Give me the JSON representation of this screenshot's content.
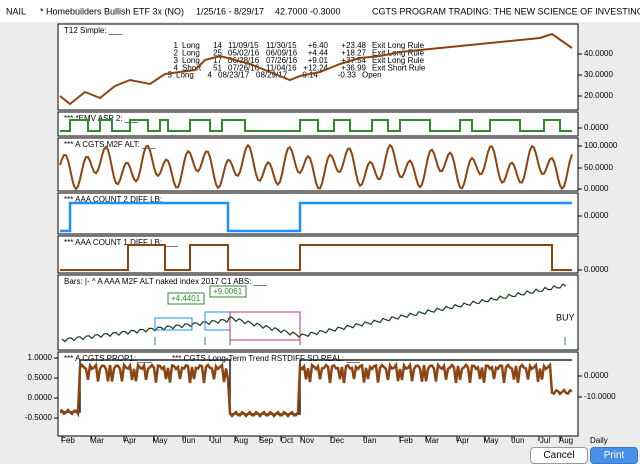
{
  "header": {
    "symbol": "NAIL",
    "name": "* Homebuilders Bullish ETF 3x (NO)",
    "range": "1/25/16 - 8/29/17",
    "price": "42.7000",
    "change": "-0.3000",
    "banner": "CGTS PROGRAM TRADING: THE NEW SCIENCE OF INVESTING"
  },
  "panels": [
    {
      "title": "T12 Simple: ___",
      "ticks": [
        "40.0000",
        "30.0000",
        "20.0000"
      ]
    },
    {
      "title": "***  *EMV ASP 2: ___",
      "ticks": [
        "0.0000"
      ]
    },
    {
      "title": "*** A CGTS M2F ALT: ___",
      "ticks": [
        "100.0000",
        "50.0000",
        "0.0000"
      ]
    },
    {
      "title": "***  AAA COUNT 2 DIFF LB: ___",
      "ticks": [
        "0.0000"
      ]
    },
    {
      "title": "***  AAA COUNT 1 DIFF LB: ___",
      "ticks": [
        "0.0000"
      ]
    },
    {
      "title": "Bars: |-      ^ A AAA  M2F ALT naked index 2017 C1 ABS: ___",
      "ticks": []
    },
    {
      "title": "*** A CGTS PROP1: ___",
      "title2": "*** CGTS Long-Term Trend RSTDIFF SO REAL: ___",
      "left_ticks": [
        "1.0000",
        "0.5000",
        "0.0000",
        "-0.5000"
      ],
      "ticks": [
        "0.0000",
        "-10.0000"
      ]
    }
  ],
  "trades": [
    [
      "1",
      "Long",
      "14",
      "11/09/15",
      "11/30/15",
      "+6.40",
      "+23.48",
      "Exit Long Rule"
    ],
    [
      "2",
      "Long",
      "25",
      "05/02/16",
      "06/09/16",
      "+4.44",
      "+18.27",
      "Exit Long Rule"
    ],
    [
      "3",
      "Long",
      "17",
      "06/28/16",
      "07/26/16",
      "+9.01",
      "+37.54",
      "Exit Long Rule"
    ],
    [
      "4",
      "Short",
      "51",
      "07/26/16",
      "11/04/16",
      "+12.24",
      "+36.99",
      "Exit Short Rule"
    ],
    [
      "5",
      "Long",
      "4",
      "08/23/17",
      "08/29/17",
      "-0.14",
      "-0.33",
      "Open"
    ]
  ],
  "annotations": {
    "gain1": "+4.4401",
    "gain2": "+9.0061",
    "signal": "BUY"
  },
  "months": [
    "Feb",
    "Mar",
    "Apr",
    "May",
    "Jun",
    "Jul",
    "Aug",
    "Sep",
    "Oct",
    "Nov",
    "Dec",
    "Jan",
    "Feb",
    "Mar",
    "Apr",
    "May",
    "Jun",
    "Jul",
    "Aug"
  ],
  "period": "Daily",
  "buttons": {
    "cancel": "Cancel",
    "print": "Print"
  }
}
